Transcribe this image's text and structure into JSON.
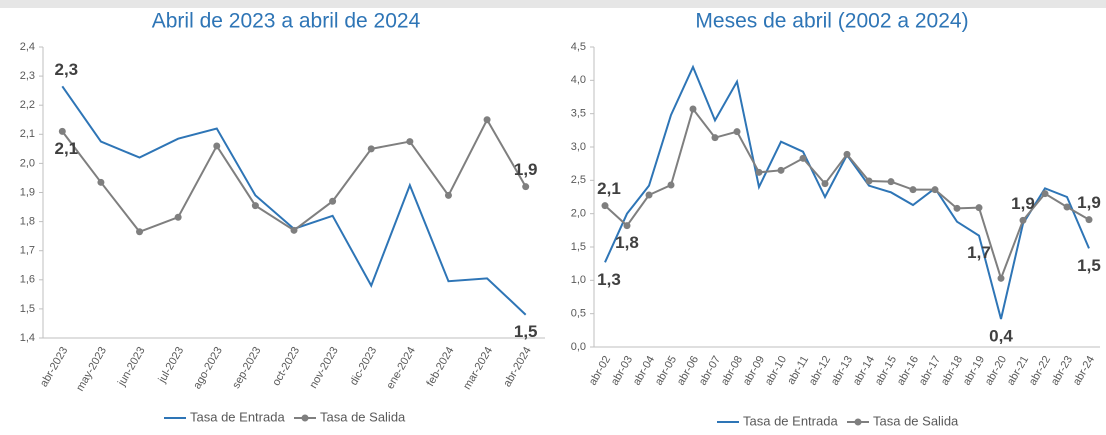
{
  "chart_data": [
    {
      "type": "line",
      "title": "Abril de 2023 a abril de 2024",
      "categories": [
        "abr-2023",
        "may-2023",
        "jun-2023",
        "jul-2023",
        "ago-2023",
        "sep-2023",
        "oct-2023",
        "nov-2023",
        "dic-2023",
        "ene-2024",
        "feb-2024",
        "mar-2024",
        "abr-2024"
      ],
      "series": [
        {
          "name": "Tasa de Entrada",
          "color": "#2e75b6",
          "marker": false,
          "values": [
            2.265,
            2.075,
            2.02,
            2.085,
            2.12,
            1.89,
            1.775,
            1.82,
            1.58,
            1.925,
            1.595,
            1.605,
            1.48
          ],
          "value_labels": [
            "2,3",
            null,
            null,
            null,
            null,
            null,
            null,
            null,
            null,
            null,
            null,
            null,
            "1,5"
          ]
        },
        {
          "name": "Tasa de Salida",
          "color": "#7f7f7f",
          "marker": true,
          "values": [
            2.11,
            1.935,
            1.765,
            1.815,
            2.06,
            1.855,
            1.77,
            1.87,
            2.05,
            2.075,
            1.89,
            2.15,
            1.92
          ],
          "value_labels": [
            "2,1",
            null,
            null,
            null,
            null,
            null,
            null,
            null,
            null,
            null,
            null,
            null,
            "1,9"
          ]
        }
      ],
      "ylim": [
        1.4,
        2.4
      ],
      "yticks": [
        {
          "value": 1.4,
          "label": "1,4"
        },
        {
          "value": 1.5,
          "label": "1,5"
        },
        {
          "value": 1.6,
          "label": "1,6"
        },
        {
          "value": 1.7,
          "label": "1,7"
        },
        {
          "value": 1.8,
          "label": "1,8"
        },
        {
          "value": 1.9,
          "label": "1,9"
        },
        {
          "value": 2.0,
          "label": "2,0"
        },
        {
          "value": 2.1,
          "label": "2,1"
        },
        {
          "value": 2.2,
          "label": "2,2"
        },
        {
          "value": 2.3,
          "label": "2,3"
        },
        {
          "value": 2.4,
          "label": "2,4"
        }
      ],
      "grid": false
    },
    {
      "type": "line",
      "title": "Meses de abril (2002 a 2024)",
      "categories": [
        "abr-02",
        "abr-03",
        "abr-04",
        "abr-05",
        "abr-06",
        "abr-07",
        "abr-08",
        "abr-09",
        "abr-10",
        "abr-11",
        "abr-12",
        "abr-13",
        "abr-14",
        "abr-15",
        "abr-16",
        "abr-17",
        "abr-18",
        "abr-19",
        "abr-20",
        "abr-21",
        "abr-22",
        "abr-23",
        "abr-24"
      ],
      "series": [
        {
          "name": "Tasa de Entrada",
          "color": "#2e75b6",
          "marker": false,
          "values": [
            1.27,
            2.0,
            2.42,
            3.48,
            4.2,
            3.4,
            3.98,
            2.4,
            3.08,
            2.93,
            2.25,
            2.88,
            2.42,
            2.32,
            2.13,
            2.38,
            1.88,
            1.67,
            0.42,
            1.85,
            2.38,
            2.25,
            1.48
          ],
          "value_labels": [
            "1,3",
            null,
            null,
            null,
            null,
            null,
            null,
            null,
            null,
            null,
            null,
            null,
            null,
            null,
            null,
            null,
            null,
            "1,7",
            "0,4",
            null,
            null,
            null,
            "1,5"
          ]
        },
        {
          "name": "Tasa de Salida",
          "color": "#7f7f7f",
          "marker": true,
          "values": [
            2.12,
            1.82,
            2.28,
            2.43,
            3.57,
            3.14,
            3.23,
            2.62,
            2.65,
            2.83,
            2.45,
            2.89,
            2.49,
            2.48,
            2.36,
            2.36,
            2.08,
            2.09,
            1.03,
            1.9,
            2.3,
            2.1,
            1.91
          ],
          "value_labels": [
            "2,1",
            "1,8",
            null,
            null,
            null,
            null,
            null,
            null,
            null,
            null,
            null,
            null,
            null,
            null,
            null,
            null,
            null,
            null,
            null,
            "1,9",
            null,
            null,
            "1,9"
          ]
        }
      ],
      "ylim": [
        0,
        4.5
      ],
      "yticks": [
        {
          "value": 0,
          "label": "0,0"
        },
        {
          "value": 0.5,
          "label": "0,5"
        },
        {
          "value": 1.0,
          "label": "1,0"
        },
        {
          "value": 1.5,
          "label": "1,5"
        },
        {
          "value": 2.0,
          "label": "2,0"
        },
        {
          "value": 2.5,
          "label": "2,5"
        },
        {
          "value": 3.0,
          "label": "3,0"
        },
        {
          "value": 3.5,
          "label": "3,5"
        },
        {
          "value": 4.0,
          "label": "4,0"
        },
        {
          "value": 4.5,
          "label": "4,5"
        }
      ],
      "grid": false
    }
  ]
}
